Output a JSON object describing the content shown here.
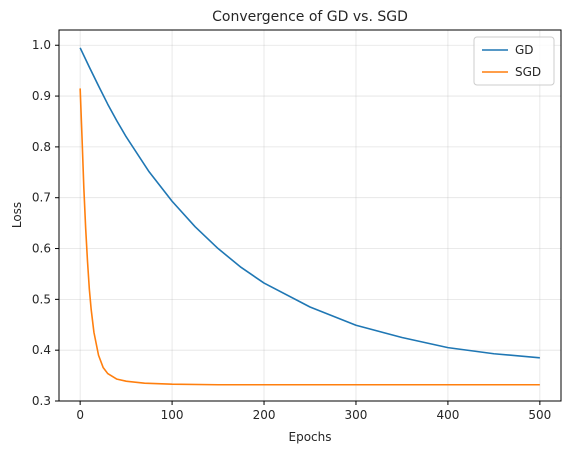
{
  "chart_data": {
    "type": "line",
    "title": "Convergence of GD vs. SGD",
    "xlabel": "Epochs",
    "ylabel": "Loss",
    "xlim": [
      -23,
      523
    ],
    "ylim": [
      0.3,
      1.03
    ],
    "xticks": [
      0,
      100,
      200,
      300,
      400,
      500
    ],
    "yticks": [
      0.3,
      0.4,
      0.5,
      0.6,
      0.7,
      0.8,
      0.9,
      1.0
    ],
    "xtick_labels": [
      "0",
      "100",
      "200",
      "300",
      "400",
      "500"
    ],
    "ytick_labels": [
      "0.3",
      "0.4",
      "0.5",
      "0.6",
      "0.7",
      "0.8",
      "0.9",
      "1.0"
    ],
    "grid": true,
    "legend_position": "top-right",
    "series": [
      {
        "name": "GD",
        "color": "#1f77b4",
        "x": [
          0,
          10,
          20,
          30,
          40,
          50,
          75,
          100,
          125,
          150,
          175,
          200,
          250,
          300,
          350,
          400,
          450,
          500
        ],
        "y": [
          0.995,
          0.957,
          0.92,
          0.884,
          0.851,
          0.82,
          0.751,
          0.693,
          0.643,
          0.6,
          0.563,
          0.532,
          0.485,
          0.449,
          0.425,
          0.405,
          0.393,
          0.385
        ]
      },
      {
        "name": "SGD",
        "color": "#ff7f0e",
        "x": [
          0,
          2,
          4,
          6,
          8,
          10,
          12,
          15,
          20,
          25,
          30,
          40,
          50,
          70,
          100,
          150,
          200,
          300,
          400,
          500
        ],
        "y": [
          0.915,
          0.82,
          0.72,
          0.64,
          0.575,
          0.52,
          0.48,
          0.435,
          0.39,
          0.366,
          0.354,
          0.343,
          0.339,
          0.335,
          0.333,
          0.332,
          0.332,
          0.332,
          0.332,
          0.332
        ]
      }
    ]
  }
}
